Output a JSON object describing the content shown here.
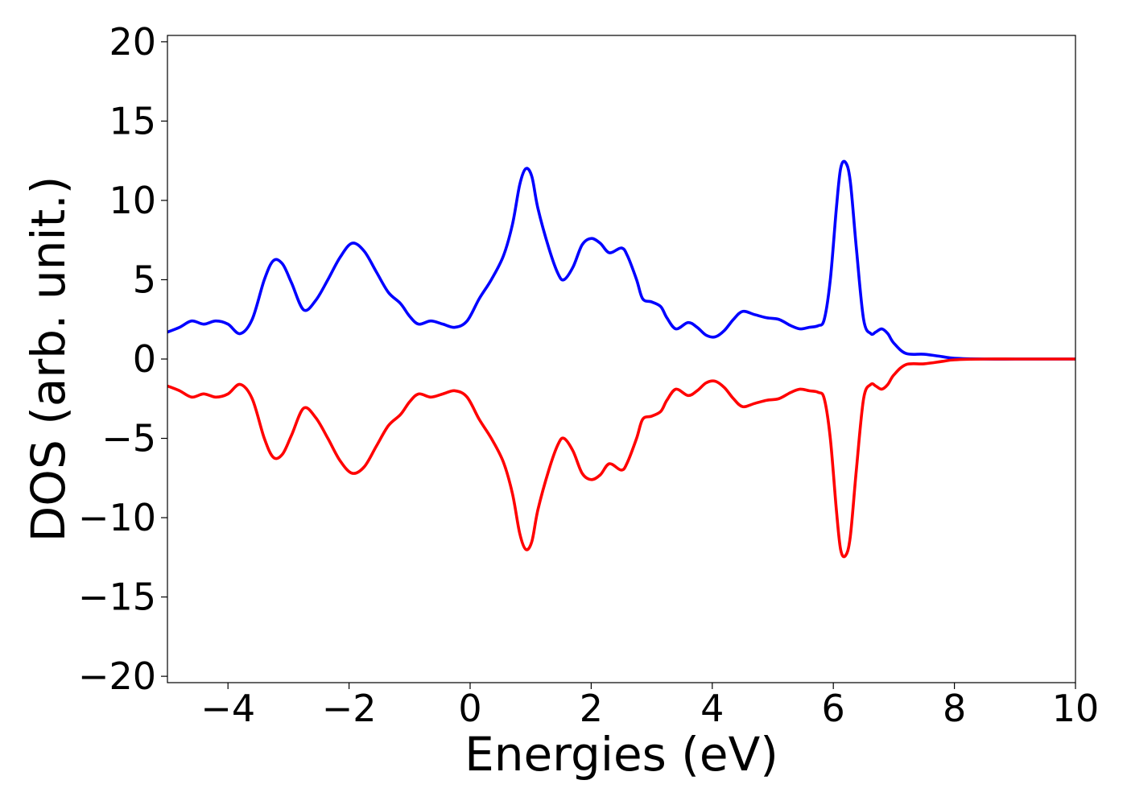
{
  "chart_data": {
    "type": "line",
    "xlabel": "Energies (eV)",
    "ylabel": "DOS (arb. unit.)",
    "xlim": [
      -5,
      10
    ],
    "ylim": [
      -20.4,
      20.4
    ],
    "xticks": [
      -4,
      -2,
      0,
      2,
      4,
      6,
      8,
      10
    ],
    "yticks": [
      -20,
      -15,
      -10,
      -5,
      0,
      5,
      10,
      15,
      20
    ],
    "xtick_labels": [
      "−4",
      "−2",
      "0",
      "2",
      "4",
      "6",
      "8",
      "10"
    ],
    "ytick_labels": [
      "−20",
      "−15",
      "−10",
      "−5",
      "0",
      "5",
      "10",
      "15",
      "20"
    ],
    "grid": false,
    "legend": "none",
    "series": [
      {
        "color": "#0000ff",
        "x": [
          -5.0,
          -4.8,
          -4.6,
          -4.4,
          -4.2,
          -4.0,
          -3.8,
          -3.6,
          -3.4,
          -3.25,
          -3.1,
          -2.95,
          -2.75,
          -2.55,
          -2.35,
          -2.15,
          -1.95,
          -1.75,
          -1.55,
          -1.35,
          -1.15,
          -1.0,
          -0.85,
          -0.65,
          -0.45,
          -0.25,
          -0.05,
          0.15,
          0.35,
          0.55,
          0.7,
          0.82,
          0.92,
          1.02,
          1.12,
          1.3,
          1.45,
          1.55,
          1.7,
          1.85,
          2.0,
          2.15,
          2.3,
          2.5,
          2.6,
          2.75,
          2.85,
          3.0,
          3.15,
          3.25,
          3.4,
          3.6,
          3.75,
          3.9,
          4.05,
          4.2,
          4.35,
          4.5,
          4.7,
          4.9,
          5.1,
          5.3,
          5.45,
          5.6,
          5.75,
          5.85,
          5.95,
          6.05,
          6.12,
          6.2,
          6.28,
          6.38,
          6.5,
          6.62,
          6.7,
          6.8,
          6.9,
          7.0,
          7.2,
          7.5,
          7.8,
          8.0,
          8.5,
          9.0,
          9.5,
          10.0
        ],
        "y": [
          1.7,
          2.0,
          2.4,
          2.2,
          2.4,
          2.2,
          1.6,
          2.5,
          5.0,
          6.2,
          6.0,
          4.8,
          3.1,
          3.7,
          5.0,
          6.4,
          7.3,
          6.8,
          5.5,
          4.2,
          3.5,
          2.7,
          2.2,
          2.4,
          2.2,
          2.0,
          2.4,
          3.8,
          5.0,
          6.5,
          8.5,
          11.0,
          12.0,
          11.5,
          9.5,
          7.0,
          5.4,
          5.0,
          5.8,
          7.2,
          7.6,
          7.3,
          6.7,
          7.0,
          6.5,
          5.0,
          3.8,
          3.6,
          3.3,
          2.6,
          1.9,
          2.3,
          2.0,
          1.5,
          1.4,
          1.8,
          2.5,
          3.0,
          2.8,
          2.6,
          2.5,
          2.1,
          1.9,
          2.0,
          2.1,
          2.5,
          5.0,
          9.5,
          12.0,
          12.4,
          11.2,
          7.0,
          2.5,
          1.6,
          1.7,
          1.9,
          1.6,
          1.0,
          0.35,
          0.3,
          0.15,
          0.05,
          0.0,
          0.0,
          0.0,
          0.0
        ]
      },
      {
        "color": "#ff0000",
        "x": [
          -5.0,
          -4.8,
          -4.6,
          -4.4,
          -4.2,
          -4.0,
          -3.8,
          -3.6,
          -3.4,
          -3.25,
          -3.1,
          -2.95,
          -2.75,
          -2.55,
          -2.35,
          -2.15,
          -1.95,
          -1.75,
          -1.55,
          -1.35,
          -1.15,
          -1.0,
          -0.85,
          -0.65,
          -0.45,
          -0.25,
          -0.05,
          0.15,
          0.35,
          0.55,
          0.7,
          0.82,
          0.92,
          1.02,
          1.12,
          1.3,
          1.45,
          1.55,
          1.7,
          1.85,
          2.0,
          2.15,
          2.3,
          2.5,
          2.6,
          2.75,
          2.85,
          3.0,
          3.15,
          3.25,
          3.4,
          3.6,
          3.75,
          3.9,
          4.05,
          4.2,
          4.35,
          4.5,
          4.7,
          4.9,
          5.1,
          5.3,
          5.45,
          5.6,
          5.75,
          5.85,
          5.95,
          6.05,
          6.12,
          6.2,
          6.28,
          6.38,
          6.5,
          6.62,
          6.7,
          6.8,
          6.9,
          7.0,
          7.2,
          7.5,
          7.8,
          8.0,
          8.5,
          9.0,
          9.5,
          10.0
        ],
        "y": [
          -1.7,
          -2.0,
          -2.4,
          -2.2,
          -2.4,
          -2.2,
          -1.6,
          -2.5,
          -5.0,
          -6.2,
          -6.0,
          -4.8,
          -3.1,
          -3.7,
          -5.0,
          -6.4,
          -7.2,
          -6.8,
          -5.5,
          -4.2,
          -3.5,
          -2.7,
          -2.2,
          -2.4,
          -2.2,
          -2.0,
          -2.4,
          -3.8,
          -5.0,
          -6.5,
          -8.5,
          -11.0,
          -12.0,
          -11.5,
          -9.5,
          -7.0,
          -5.4,
          -5.0,
          -5.8,
          -7.2,
          -7.6,
          -7.3,
          -6.6,
          -7.0,
          -6.5,
          -5.0,
          -3.8,
          -3.6,
          -3.3,
          -2.6,
          -1.9,
          -2.3,
          -2.0,
          -1.5,
          -1.4,
          -1.8,
          -2.5,
          -3.0,
          -2.8,
          -2.6,
          -2.5,
          -2.1,
          -1.9,
          -2.0,
          -2.1,
          -2.5,
          -5.0,
          -9.5,
          -12.0,
          -12.4,
          -11.2,
          -7.0,
          -2.5,
          -1.6,
          -1.7,
          -1.9,
          -1.6,
          -1.0,
          -0.35,
          -0.3,
          -0.15,
          -0.05,
          0.0,
          0.0,
          0.0,
          0.0
        ]
      }
    ]
  }
}
